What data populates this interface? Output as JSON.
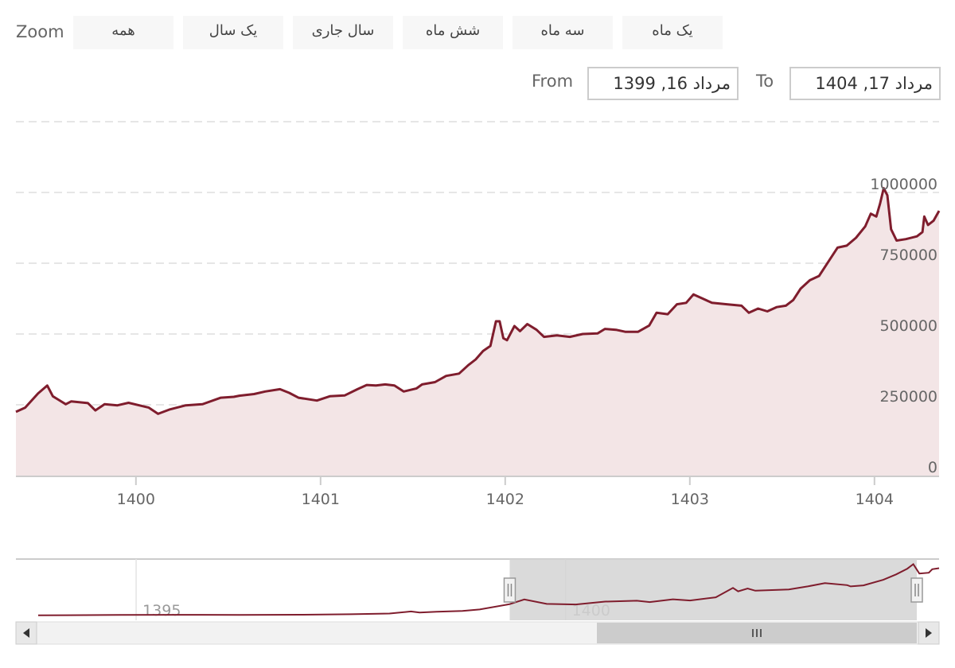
{
  "range_selector": {
    "zoom_label": "Zoom",
    "buttons": [
      "همه",
      "یک سال",
      "سال جاری",
      "شش ماه",
      "سه ماه",
      "یک ماه"
    ],
    "from_label": "From",
    "from_value": "مرداد 16, 1399",
    "to_label": "To",
    "to_value": "مرداد 17, 1404"
  },
  "colors": {
    "line": "#7f1d2d",
    "area": "#f3e5e6",
    "grid": "#dddddd",
    "navigator_mask": "#d4d4d4"
  },
  "chart_data": {
    "type": "area",
    "title": "",
    "xlabel": "",
    "ylabel": "",
    "x_range": [
      1399.35,
      1404.35
    ],
    "ylim": [
      0,
      1000000
    ],
    "y_ticks": [
      0,
      250000,
      500000,
      750000,
      1000000
    ],
    "y_tick_labels": [
      "0",
      "250000",
      "500000",
      "750000",
      "1000000"
    ],
    "x_ticks": [
      1400,
      1401,
      1402,
      1403,
      1404
    ],
    "x_tick_labels": [
      "1400",
      "1401",
      "1402",
      "1403",
      "1404"
    ],
    "grid": true,
    "series": [
      {
        "values": [
          [
            1399.35,
            225000
          ],
          [
            1399.4,
            240000
          ],
          [
            1399.47,
            290000
          ],
          [
            1399.52,
            318000
          ],
          [
            1399.55,
            280000
          ],
          [
            1399.58,
            268000
          ],
          [
            1399.62,
            252000
          ],
          [
            1399.65,
            262000
          ],
          [
            1399.74,
            256000
          ],
          [
            1399.78,
            230000
          ],
          [
            1399.83,
            252000
          ],
          [
            1399.9,
            248000
          ],
          [
            1399.96,
            257000
          ],
          [
            1400.07,
            240000
          ],
          [
            1400.12,
            218000
          ],
          [
            1400.18,
            233000
          ],
          [
            1400.27,
            248000
          ],
          [
            1400.36,
            252000
          ],
          [
            1400.46,
            275000
          ],
          [
            1400.53,
            278000
          ],
          [
            1400.56,
            282000
          ],
          [
            1400.64,
            288000
          ],
          [
            1400.7,
            297000
          ],
          [
            1400.78,
            305000
          ],
          [
            1400.83,
            292000
          ],
          [
            1400.88,
            275000
          ],
          [
            1400.98,
            265000
          ],
          [
            1401.05,
            280000
          ],
          [
            1401.13,
            283000
          ],
          [
            1401.2,
            305000
          ],
          [
            1401.25,
            320000
          ],
          [
            1401.3,
            318000
          ],
          [
            1401.35,
            322000
          ],
          [
            1401.4,
            318000
          ],
          [
            1401.45,
            297000
          ],
          [
            1401.52,
            308000
          ],
          [
            1401.55,
            322000
          ],
          [
            1401.62,
            330000
          ],
          [
            1401.68,
            352000
          ],
          [
            1401.75,
            360000
          ],
          [
            1401.8,
            390000
          ],
          [
            1401.84,
            410000
          ],
          [
            1401.88,
            440000
          ],
          [
            1401.92,
            458000
          ],
          [
            1401.95,
            545000
          ],
          [
            1401.97,
            545000
          ],
          [
            1401.99,
            485000
          ],
          [
            1402.01,
            478000
          ],
          [
            1402.05,
            528000
          ],
          [
            1402.08,
            510000
          ],
          [
            1402.12,
            535000
          ],
          [
            1402.17,
            515000
          ],
          [
            1402.21,
            490000
          ],
          [
            1402.28,
            495000
          ],
          [
            1402.35,
            490000
          ],
          [
            1402.42,
            500000
          ],
          [
            1402.5,
            502000
          ],
          [
            1402.54,
            518000
          ],
          [
            1402.6,
            515000
          ],
          [
            1402.65,
            508000
          ],
          [
            1402.72,
            508000
          ],
          [
            1402.78,
            530000
          ],
          [
            1402.82,
            575000
          ],
          [
            1402.88,
            570000
          ],
          [
            1402.93,
            605000
          ],
          [
            1402.98,
            610000
          ],
          [
            1403.02,
            640000
          ],
          [
            1403.07,
            625000
          ],
          [
            1403.12,
            610000
          ],
          [
            1403.2,
            605000
          ],
          [
            1403.28,
            600000
          ],
          [
            1403.32,
            575000
          ],
          [
            1403.37,
            590000
          ],
          [
            1403.42,
            580000
          ],
          [
            1403.47,
            595000
          ],
          [
            1403.52,
            600000
          ],
          [
            1403.56,
            620000
          ],
          [
            1403.6,
            660000
          ],
          [
            1403.65,
            690000
          ],
          [
            1403.7,
            705000
          ],
          [
            1403.75,
            755000
          ],
          [
            1403.8,
            805000
          ],
          [
            1403.85,
            812000
          ],
          [
            1403.9,
            840000
          ],
          [
            1403.95,
            880000
          ],
          [
            1403.98,
            925000
          ],
          [
            1404.01,
            915000
          ],
          [
            1404.03,
            960000
          ],
          [
            1404.05,
            1015000
          ],
          [
            1404.07,
            990000
          ],
          [
            1404.09,
            870000
          ],
          [
            1404.12,
            830000
          ],
          [
            1404.17,
            835000
          ],
          [
            1404.23,
            845000
          ],
          [
            1404.26,
            860000
          ],
          [
            1404.27,
            915000
          ],
          [
            1404.29,
            885000
          ],
          [
            1404.32,
            900000
          ],
          [
            1404.35,
            935000
          ]
        ]
      }
    ],
    "navigator": {
      "x_range": [
        1393.6,
        1404.35
      ],
      "x_ticks": [
        1395,
        1400
      ],
      "x_tick_labels": [
        "1395",
        "1400"
      ],
      "ylim": [
        0,
        1100000
      ],
      "selected_range": [
        1399.35,
        1404.35
      ],
      "values": [
        [
          1393.6,
          5000
        ],
        [
          1394.2,
          6000
        ],
        [
          1394.8,
          12000
        ],
        [
          1395.5,
          14000
        ],
        [
          1396.2,
          12000
        ],
        [
          1396.9,
          16000
        ],
        [
          1397.5,
          25000
        ],
        [
          1397.95,
          40000
        ],
        [
          1398.2,
          80000
        ],
        [
          1398.3,
          60000
        ],
        [
          1398.5,
          75000
        ],
        [
          1398.8,
          90000
        ],
        [
          1399.0,
          120000
        ],
        [
          1399.35,
          225000
        ],
        [
          1399.52,
          318000
        ],
        [
          1399.78,
          230000
        ],
        [
          1400.12,
          218000
        ],
        [
          1400.46,
          275000
        ],
        [
          1400.83,
          292000
        ],
        [
          1400.98,
          265000
        ],
        [
          1401.25,
          320000
        ],
        [
          1401.45,
          297000
        ],
        [
          1401.75,
          360000
        ],
        [
          1401.95,
          545000
        ],
        [
          1402.01,
          478000
        ],
        [
          1402.12,
          535000
        ],
        [
          1402.21,
          490000
        ],
        [
          1402.6,
          515000
        ],
        [
          1402.82,
          575000
        ],
        [
          1403.02,
          640000
        ],
        [
          1403.28,
          600000
        ],
        [
          1403.32,
          575000
        ],
        [
          1403.47,
          595000
        ],
        [
          1403.7,
          705000
        ],
        [
          1403.85,
          812000
        ],
        [
          1403.98,
          925000
        ],
        [
          1404.05,
          1015000
        ],
        [
          1404.12,
          830000
        ],
        [
          1404.23,
          845000
        ],
        [
          1404.27,
          915000
        ],
        [
          1404.35,
          935000
        ]
      ]
    }
  }
}
